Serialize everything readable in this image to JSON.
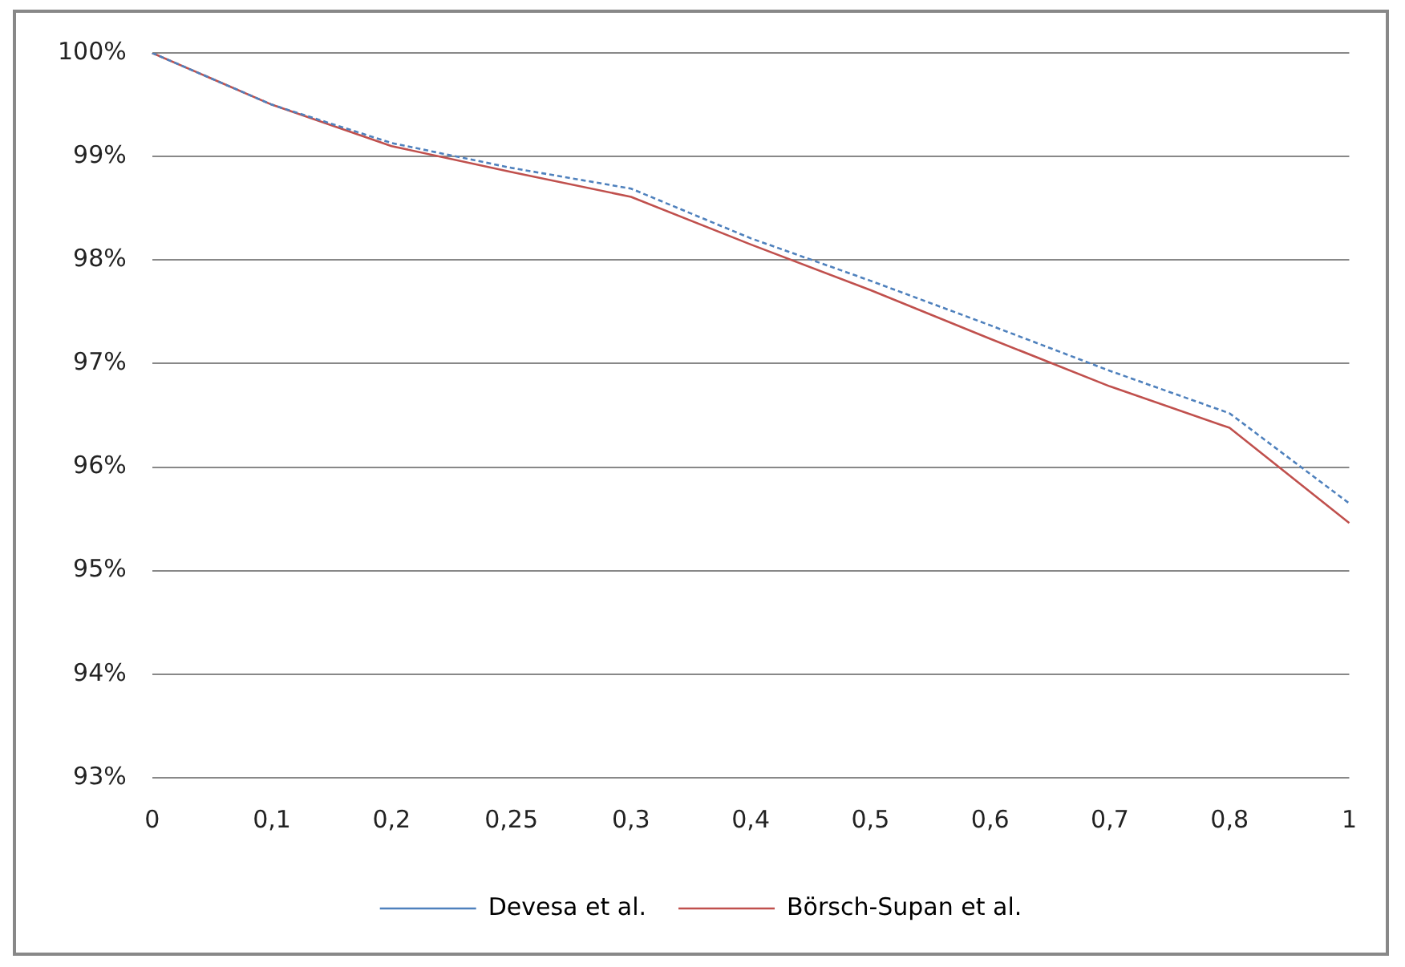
{
  "chart_data": {
    "type": "line",
    "categories": [
      "0",
      "0,1",
      "0,2",
      "0,25",
      "0,3",
      "0,4",
      "0,5",
      "0,6",
      "0,7",
      "0,8",
      "1"
    ],
    "series": [
      {
        "name": "Devesa et al.",
        "color": "#4f81bd",
        "line_style": "dashed",
        "values": [
          100,
          99.5,
          99.13,
          98.89,
          98.69,
          98.21,
          97.8,
          97.37,
          96.93,
          96.52,
          95.65
        ]
      },
      {
        "name": "Börsch-Supan et al.",
        "color": "#c0504d",
        "line_style": "solid",
        "values": [
          100,
          99.5,
          99.1,
          98.85,
          98.61,
          98.15,
          97.71,
          97.24,
          96.78,
          96.38,
          95.46
        ]
      }
    ],
    "ylim": [
      93,
      100
    ],
    "yticks": [
      {
        "value": 93,
        "label": "93%"
      },
      {
        "value": 94,
        "label": "94%"
      },
      {
        "value": 95,
        "label": "95%"
      },
      {
        "value": 96,
        "label": "96%"
      },
      {
        "value": 97,
        "label": "97%"
      },
      {
        "value": 98,
        "label": "98%"
      },
      {
        "value": 99,
        "label": "99%"
      },
      {
        "value": 100,
        "label": "100%"
      }
    ],
    "grid": "y",
    "legend": "bottom",
    "marker": "none"
  }
}
